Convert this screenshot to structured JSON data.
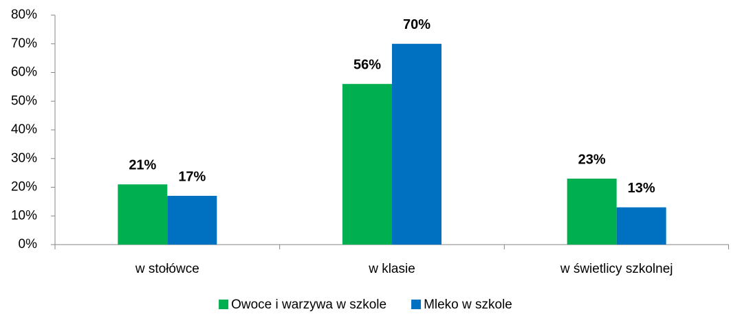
{
  "chart_data": {
    "type": "bar",
    "categories": [
      "w stołówce",
      "w klasie",
      "w świetlicy szkolnej"
    ],
    "series": [
      {
        "name": "Owoce i warzywa w szkole",
        "color": "#00b050",
        "values": [
          21,
          56,
          23
        ],
        "value_labels": [
          "21%",
          "56%",
          "23%"
        ]
      },
      {
        "name": "Mleko w szkole",
        "color": "#0070c0",
        "values": [
          17,
          70,
          13
        ],
        "value_labels": [
          "17%",
          "70%",
          "13%"
        ]
      }
    ],
    "ylim": [
      0,
      80
    ],
    "yticks": [
      {
        "value": 0,
        "label": "0%"
      },
      {
        "value": 10,
        "label": "10%"
      },
      {
        "value": 20,
        "label": "20%"
      },
      {
        "value": 30,
        "label": "30%"
      },
      {
        "value": 40,
        "label": "40%"
      },
      {
        "value": 50,
        "label": "50%"
      },
      {
        "value": 60,
        "label": "60%"
      },
      {
        "value": 70,
        "label": "70%"
      },
      {
        "value": 80,
        "label": "80%"
      }
    ],
    "legend": "bottom"
  }
}
